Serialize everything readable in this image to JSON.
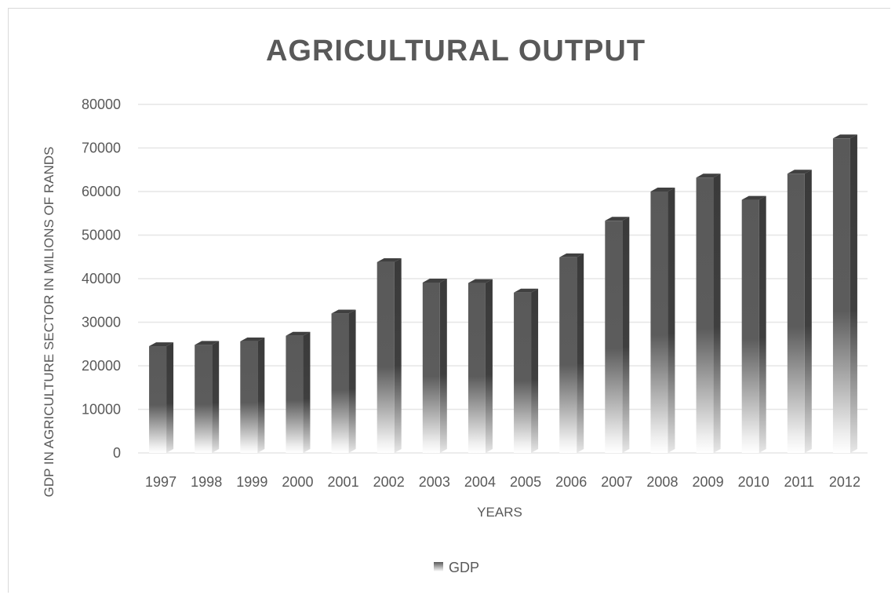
{
  "chart_data": {
    "type": "bar",
    "title": "AGRICULTURAL OUTPUT",
    "xlabel": "YEARS",
    "ylabel": "GDP IN AGRICULTURE SECTOR IN MILIONS OF RANDS",
    "categories": [
      "1997",
      "1998",
      "1999",
      "2000",
      "2001",
      "2002",
      "2003",
      "2004",
      "2005",
      "2006",
      "2007",
      "2008",
      "2009",
      "2010",
      "2011",
      "2012"
    ],
    "series": [
      {
        "name": "GDP",
        "values": [
          24500,
          24800,
          25600,
          26900,
          32000,
          43800,
          39100,
          39000,
          36800,
          44900,
          53300,
          60000,
          63200,
          58100,
          64100,
          72200
        ]
      }
    ],
    "ylim": [
      0,
      80000
    ],
    "yticks": [
      "0",
      "10000",
      "20000",
      "30000",
      "40000",
      "50000",
      "60000",
      "70000",
      "80000"
    ],
    "grid": true,
    "legend_position": "bottom",
    "colors": {
      "bar": "#595959",
      "bar_side": "#3a3a3a",
      "bar_top": "#404040",
      "grid": "#e6e6e6",
      "text": "#595959"
    }
  }
}
